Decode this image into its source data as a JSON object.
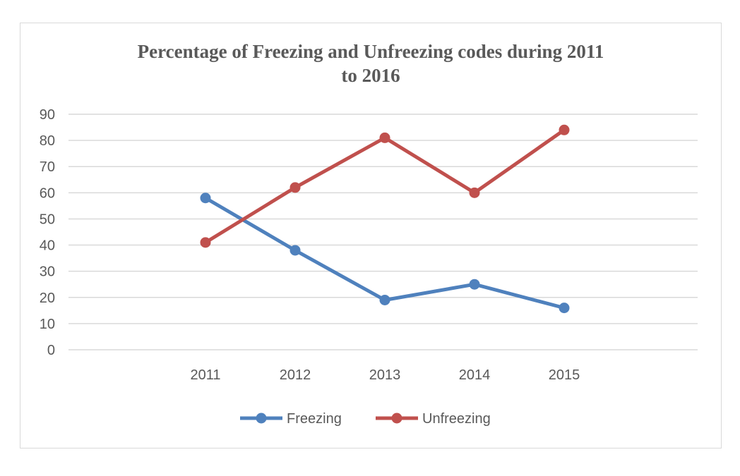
{
  "chart_data": {
    "type": "line",
    "title": "Percentage of Freezing and Unfreezing codes during 2011 to 2016",
    "title_lines": [
      "Percentage of Freezing and Unfreezing codes during 2011",
      "to 2016"
    ],
    "categories": [
      "2011",
      "2012",
      "2013",
      "2014",
      "2015"
    ],
    "series": [
      {
        "name": "Freezing",
        "color": "#4f81bd",
        "values": [
          58,
          38,
          19,
          25,
          16
        ]
      },
      {
        "name": "Unfreezing",
        "color": "#c0504d",
        "values": [
          41,
          62,
          81,
          60,
          84
        ]
      }
    ],
    "ylim": [
      0,
      90
    ],
    "yticks": [
      0,
      10,
      20,
      30,
      40,
      50,
      60,
      70,
      80,
      90
    ],
    "grid": true,
    "legend": "bottom",
    "xlabel": "",
    "ylabel": ""
  }
}
